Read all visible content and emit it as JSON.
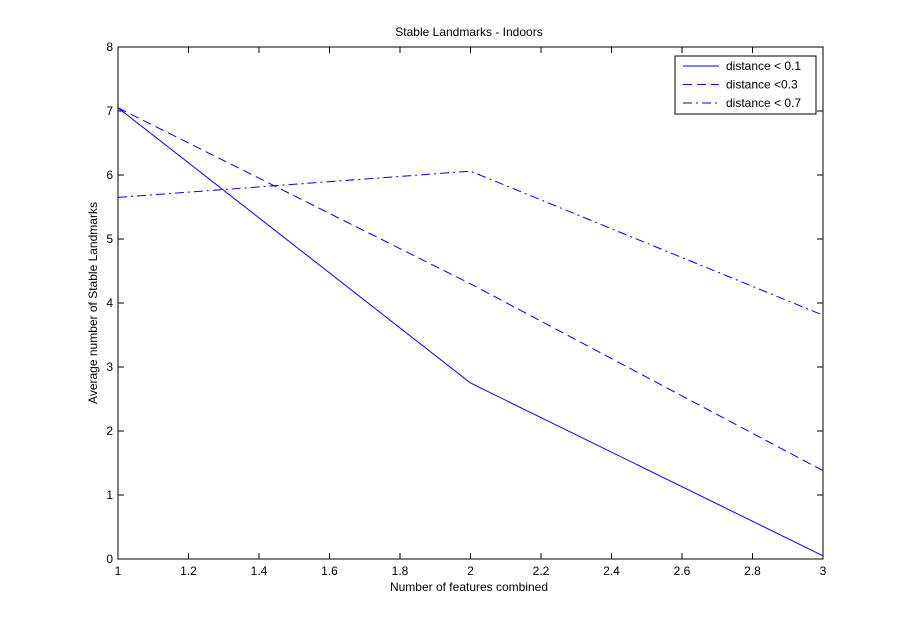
{
  "chart_data": {
    "type": "line",
    "title": "Stable Landmarks - Indoors",
    "xlabel": "Number of features combined",
    "ylabel": "Average number of Stable Landmarks",
    "xlim": [
      1,
      3
    ],
    "ylim": [
      0,
      8
    ],
    "xticks": [
      "1",
      "1.2",
      "1.4",
      "1.6",
      "1.8",
      "2",
      "2.2",
      "2.4",
      "2.6",
      "2.8",
      "3"
    ],
    "yticks": [
      "0",
      "1",
      "2",
      "3",
      "4",
      "5",
      "6",
      "7",
      "8"
    ],
    "grid": false,
    "legend_position": "top-right",
    "x": [
      1,
      2,
      3
    ],
    "series": [
      {
        "name": "distance < 0.1",
        "values": [
          7.05,
          2.75,
          0.05
        ],
        "line_style": "solid",
        "color": "#0000ff"
      },
      {
        "name": "distance <0.3",
        "values": [
          7.05,
          4.3,
          1.38
        ],
        "line_style": "dashed",
        "color": "#0000ff"
      },
      {
        "name": "distance < 0.7",
        "values": [
          5.65,
          6.06,
          3.81
        ],
        "line_style": "dashdot",
        "color": "#0000ff"
      }
    ]
  }
}
